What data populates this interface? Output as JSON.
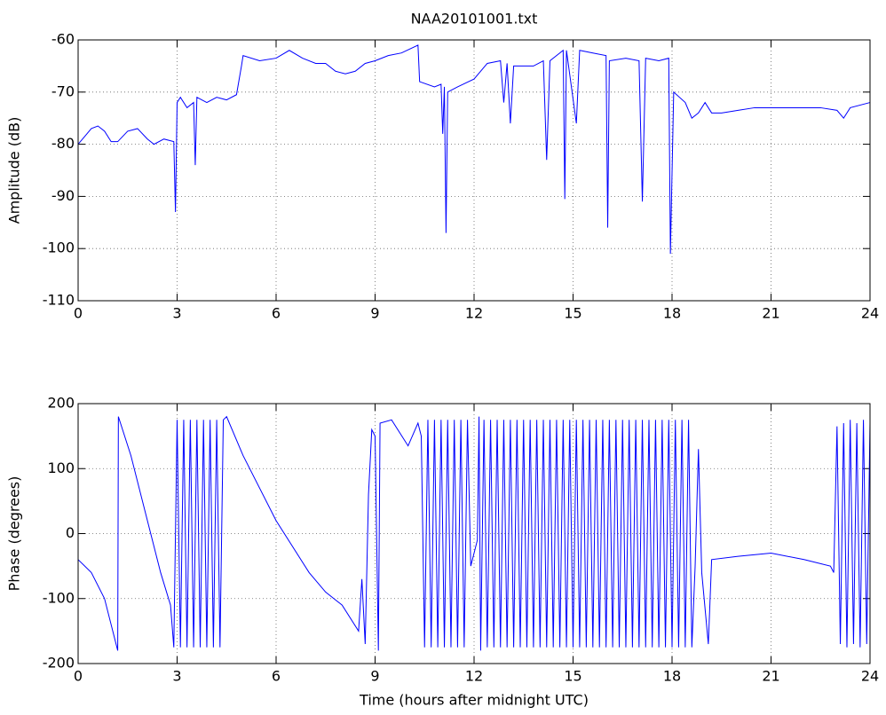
{
  "chart_data": [
    {
      "type": "line",
      "title": "NAA20101001.txt",
      "ylabel": "Amplitude (dB)",
      "color": "#0000ff",
      "grid": true,
      "xlim": [
        0,
        24
      ],
      "xticks": [
        0,
        3,
        6,
        9,
        12,
        15,
        18,
        21,
        24
      ],
      "ylim": [
        -110,
        -60
      ],
      "yticks": [
        -110,
        -100,
        -90,
        -80,
        -70,
        -60
      ],
      "x": [
        0,
        0.2,
        0.4,
        0.6,
        0.8,
        1,
        1.2,
        1.5,
        1.8,
        2.1,
        2.3,
        2.6,
        2.9,
        2.95,
        3,
        3.1,
        3.3,
        3.5,
        3.55,
        3.6,
        3.9,
        4.2,
        4.5,
        4.8,
        4.95,
        5,
        5.5,
        6,
        6.4,
        6.8,
        7.2,
        7.5,
        7.8,
        8.1,
        8.4,
        8.7,
        9,
        9.4,
        9.8,
        10.3,
        10.35,
        10.8,
        11,
        11.05,
        11.1,
        11.15,
        11.2,
        11.5,
        12,
        12.4,
        12.8,
        12.9,
        13,
        13.1,
        13.2,
        13.8,
        14.1,
        14.2,
        14.3,
        14.7,
        14.75,
        14.8,
        15.1,
        15.2,
        15.6,
        16,
        16.05,
        16.1,
        16.6,
        17,
        17.1,
        17.2,
        17.6,
        17.9,
        17.95,
        18.05,
        18.4,
        18.6,
        18.8,
        19,
        19.2,
        19.5,
        20,
        20.5,
        21,
        21.5,
        22,
        22.5,
        23,
        23.2,
        23.4,
        24
      ],
      "values": [
        -80,
        -78.5,
        -77,
        -76.5,
        -77.5,
        -79.5,
        -79.5,
        -77.5,
        -77,
        -79,
        -80,
        -79,
        -79.5,
        -93,
        -72,
        -71,
        -73,
        -72,
        -84,
        -71,
        -72,
        -71,
        -71.5,
        -70.5,
        -65,
        -63,
        -64,
        -63.5,
        -62,
        -63.5,
        -64.5,
        -64.5,
        -66,
        -66.5,
        -66,
        -64.5,
        -64,
        -63,
        -62.5,
        -61,
        -68,
        -69,
        -68.5,
        -78,
        -69,
        -97,
        -70,
        -69,
        -67.5,
        -64.5,
        -64,
        -72,
        -64.5,
        -76,
        -65,
        -65,
        -64,
        -83,
        -64,
        -62,
        -90.5,
        -62,
        -76,
        -62,
        -62.5,
        -63,
        -96,
        -64,
        -63.5,
        -64,
        -91,
        -63.5,
        -64,
        -63.5,
        -101,
        -70,
        -72,
        -75,
        -74,
        -72,
        -74,
        -74,
        -73.5,
        -73,
        -73,
        -73,
        -73,
        -73,
        -73.5,
        -75,
        -73,
        -72
      ]
    },
    {
      "type": "line",
      "ylabel": "Phase (degrees)",
      "xlabel": "Time (hours after midnight UTC)",
      "color": "#0000ff",
      "grid": true,
      "xlim": [
        0,
        24
      ],
      "xticks": [
        0,
        3,
        6,
        9,
        12,
        15,
        18,
        21,
        24
      ],
      "ylim": [
        -200,
        200
      ],
      "yticks": [
        -200,
        -100,
        0,
        100,
        200
      ],
      "x": [
        0,
        0.4,
        0.8,
        1.2,
        1.22,
        1.6,
        2,
        2.5,
        2.8,
        2.9,
        3,
        3.1,
        3.2,
        3.3,
        3.4,
        3.5,
        3.6,
        3.7,
        3.8,
        3.9,
        4,
        4.1,
        4.2,
        4.3,
        4.4,
        4.5,
        5,
        6,
        7,
        7.5,
        8,
        8.5,
        8.6,
        8.7,
        8.8,
        8.9,
        9,
        9.1,
        9.15,
        9.5,
        10,
        10.3,
        10.4,
        10.5,
        10.6,
        10.7,
        10.8,
        10.9,
        11,
        11.1,
        11.2,
        11.3,
        11.4,
        11.5,
        11.6,
        11.7,
        11.8,
        11.9,
        12.1,
        12.15,
        12.2,
        12.3,
        12.4,
        12.5,
        12.6,
        12.7,
        12.8,
        12.9,
        13,
        13.1,
        13.2,
        13.3,
        13.4,
        13.5,
        13.6,
        13.7,
        13.8,
        13.9,
        14,
        14.1,
        14.2,
        14.3,
        14.4,
        14.5,
        14.6,
        14.7,
        14.8,
        14.9,
        15,
        15.1,
        15.2,
        15.3,
        15.4,
        15.5,
        15.6,
        15.7,
        15.8,
        15.9,
        16,
        16.1,
        16.2,
        16.3,
        16.4,
        16.5,
        16.6,
        16.7,
        16.8,
        16.9,
        17,
        17.1,
        17.2,
        17.3,
        17.4,
        17.5,
        17.6,
        17.7,
        17.8,
        17.9,
        18,
        18.1,
        18.2,
        18.3,
        18.4,
        18.5,
        18.6,
        18.7,
        18.8,
        18.9,
        19.1,
        19.2,
        20,
        21,
        22,
        22.8,
        22.9,
        23,
        23.1,
        23.2,
        23.3,
        23.4,
        23.5,
        23.6,
        23.7,
        23.8,
        23.9,
        24
      ],
      "values": [
        -40,
        -60,
        -100,
        -180,
        180,
        120,
        40,
        -60,
        -110,
        -175,
        175,
        -175,
        175,
        -175,
        175,
        -175,
        175,
        -175,
        175,
        -175,
        175,
        -175,
        175,
        -175,
        175,
        180,
        120,
        20,
        -60,
        -90,
        -110,
        -150,
        -70,
        -170,
        60,
        160,
        150,
        -180,
        170,
        175,
        135,
        170,
        150,
        -175,
        175,
        -175,
        175,
        -175,
        175,
        -175,
        175,
        -175,
        175,
        -175,
        175,
        -175,
        175,
        -50,
        -10,
        180,
        -180,
        175,
        -175,
        175,
        -175,
        175,
        -175,
        175,
        -175,
        175,
        -175,
        175,
        -175,
        175,
        -175,
        175,
        -175,
        175,
        -175,
        175,
        -175,
        175,
        -175,
        175,
        -175,
        175,
        -175,
        175,
        -175,
        175,
        -175,
        175,
        -175,
        175,
        -175,
        175,
        -175,
        175,
        -175,
        175,
        -175,
        175,
        -175,
        175,
        -175,
        175,
        -175,
        175,
        -175,
        175,
        -175,
        175,
        -175,
        175,
        -175,
        175,
        -175,
        175,
        -175,
        175,
        -175,
        175,
        -175,
        175,
        -175,
        -50,
        130,
        -60,
        -170,
        -40,
        -35,
        -30,
        -40,
        -50,
        -60,
        165,
        -170,
        170,
        -175,
        175,
        -170,
        170,
        -175,
        175,
        -170,
        170
      ]
    }
  ]
}
